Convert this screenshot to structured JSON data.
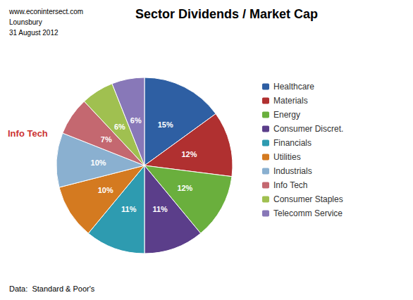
{
  "chart_data": {
    "type": "pie",
    "title": "Sector Dividends / Market Cap",
    "subtitle": [
      "www.econintersect.com",
      "Lounsbury",
      "31 August 2012"
    ],
    "categories": [
      "Healthcare",
      "Materials",
      "Energy",
      "Consumer Discret.",
      "Financials",
      "Utilities",
      "Industrials",
      "Info Tech",
      "Consumer Staples",
      "Telecomm Service"
    ],
    "values": [
      15,
      12,
      12,
      11,
      11,
      10,
      10,
      7,
      6,
      6
    ],
    "value_labels": [
      "15%",
      "12%",
      "12%",
      "11%",
      "11%",
      "10%",
      "10%",
      "7%",
      "6%",
      "6%"
    ],
    "colors": [
      "#2E5FA3",
      "#B03030",
      "#6AAF3D",
      "#5B3E8A",
      "#2E9BB0",
      "#D47A20",
      "#8AB0D0",
      "#C46870",
      "#A0C050",
      "#8878B8"
    ],
    "legend": "right",
    "data_labels": true,
    "annotations": [
      {
        "text": "Info Tech",
        "color": "#CC3333"
      }
    ],
    "footnote": "Data:  Standard & Poor's"
  }
}
